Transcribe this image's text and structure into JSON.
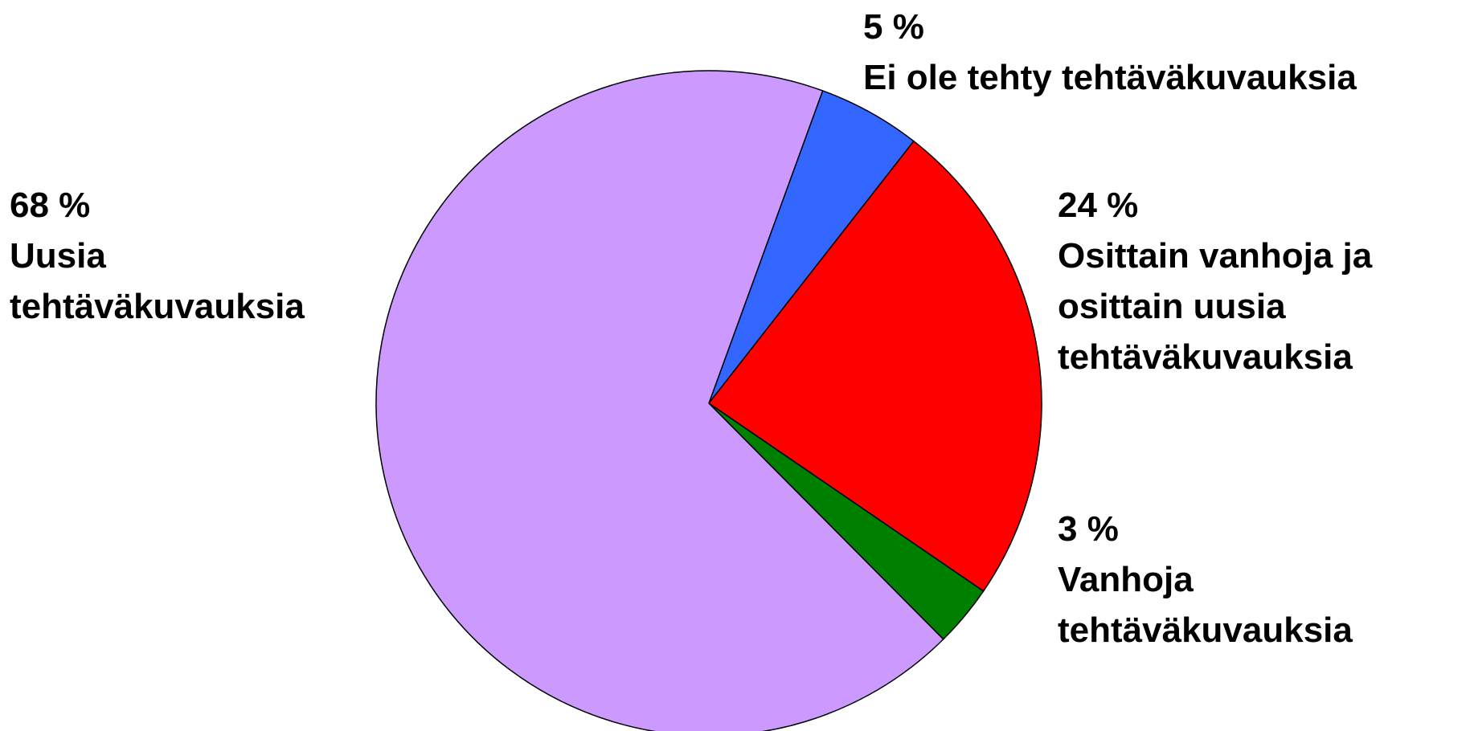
{
  "chart_data": {
    "type": "pie",
    "categories": [
      "Ei ole tehty tehtäväkuvauksia",
      "Osittain vanhoja ja osittain uusia tehtäväkuvauksia",
      "Vanhoja tehtäväkuvauksia",
      "Uusia tehtäväkuvauksia"
    ],
    "values": [
      5,
      24,
      3,
      68
    ],
    "value_labels": [
      "5 %",
      "24 %",
      "3 %",
      "68 %"
    ],
    "colors": [
      "#3366ff",
      "#ff0000",
      "#008000",
      "#cc99ff"
    ]
  }
}
